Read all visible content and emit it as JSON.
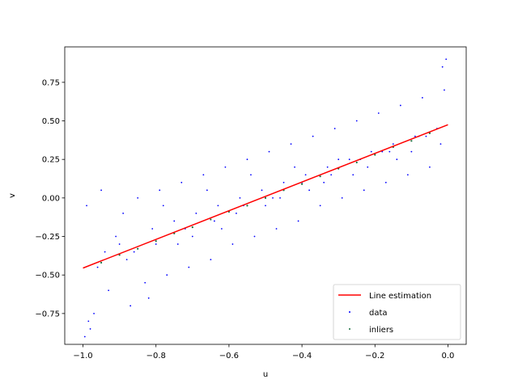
{
  "chart_data": {
    "type": "scatter",
    "title": "",
    "xlabel": "u",
    "ylabel": "v",
    "xlim": [
      -1.05,
      0.05
    ],
    "ylim": [
      -0.95,
      0.98
    ],
    "xticks": [
      -1.0,
      -0.8,
      -0.6,
      -0.4,
      -0.2,
      0.0
    ],
    "xtick_labels": [
      "−1.0",
      "−0.8",
      "−0.6",
      "−0.4",
      "−0.2",
      "0.0"
    ],
    "yticks": [
      -0.75,
      -0.5,
      -0.25,
      0.0,
      0.25,
      0.5,
      0.75
    ],
    "ytick_labels": [
      "−0.75",
      "−0.50",
      "−0.25",
      "0.00",
      "0.25",
      "0.50",
      "0.75"
    ],
    "grid": false,
    "legend_position": "lower-right",
    "line": {
      "name": "Line estimation",
      "color": "#ff0000",
      "x": [
        -1.0,
        0.0
      ],
      "y": [
        -0.455,
        0.475
      ]
    },
    "series": [
      {
        "name": "data",
        "color": "#0000ff",
        "kind": "scatter",
        "x": [
          -0.99,
          -0.97,
          -0.95,
          -0.93,
          -0.91,
          -0.89,
          -0.87,
          -0.85,
          -0.83,
          -0.81,
          -0.79,
          -0.77,
          -0.75,
          -0.73,
          -0.71,
          -0.69,
          -0.67,
          -0.65,
          -0.63,
          -0.61,
          -0.59,
          -0.57,
          -0.55,
          -0.53,
          -0.51,
          -0.49,
          -0.47,
          -0.45,
          -0.43,
          -0.41,
          -0.39,
          -0.37,
          -0.35,
          -0.33,
          -0.31,
          -0.29,
          -0.27,
          -0.25,
          -0.23,
          -0.21,
          -0.19,
          -0.17,
          -0.15,
          -0.13,
          -0.11,
          -0.09,
          -0.07,
          -0.05,
          -0.03,
          -0.01,
          -0.98,
          -0.94,
          -0.9,
          -0.86,
          -0.82,
          -0.78,
          -0.74,
          -0.7,
          -0.66,
          -0.62,
          -0.58,
          -0.54,
          -0.5,
          -0.46,
          -0.42,
          -0.38,
          -0.34,
          -0.3,
          -0.26,
          -0.22,
          -0.18,
          -0.14,
          -0.1,
          -0.06,
          -0.02,
          -0.96,
          -0.88,
          -0.8,
          -0.72,
          -0.64,
          -0.56,
          -0.48,
          -0.4,
          -0.32,
          -0.24,
          -0.16,
          -0.08,
          -0.995,
          -0.985,
          -0.005,
          -0.015
        ],
        "y": [
          -0.05,
          -0.75,
          0.05,
          -0.6,
          -0.25,
          -0.1,
          -0.7,
          0.0,
          -0.55,
          -0.2,
          0.05,
          -0.5,
          -0.15,
          0.1,
          -0.45,
          -0.1,
          0.15,
          -0.4,
          -0.05,
          0.2,
          -0.3,
          0.0,
          0.25,
          -0.25,
          0.05,
          0.3,
          -0.2,
          0.1,
          0.35,
          -0.15,
          0.15,
          0.4,
          -0.05,
          0.2,
          0.45,
          0.0,
          0.25,
          0.5,
          0.05,
          0.3,
          0.55,
          0.1,
          0.35,
          0.6,
          0.15,
          0.4,
          0.65,
          0.2,
          0.45,
          0.7,
          -0.85,
          -0.35,
          -0.3,
          -0.35,
          -0.65,
          -0.05,
          -0.3,
          -0.25,
          0.05,
          -0.2,
          -0.1,
          0.15,
          -0.05,
          0.0,
          0.2,
          0.05,
          0.1,
          0.25,
          0.15,
          0.2,
          0.3,
          0.25,
          0.3,
          0.4,
          0.35,
          -0.45,
          -0.4,
          -0.3,
          -0.2,
          -0.15,
          -0.05,
          0.0,
          0.1,
          0.15,
          0.25,
          0.3,
          0.4,
          -0.9,
          -0.8,
          0.9,
          0.85
        ]
      },
      {
        "name": "inliers",
        "color": "#1a6f3f",
        "kind": "scatter",
        "x": [
          -0.95,
          -0.9,
          -0.85,
          -0.8,
          -0.75,
          -0.7,
          -0.65,
          -0.6,
          -0.55,
          -0.5,
          -0.45,
          -0.4,
          -0.35,
          -0.3,
          -0.25,
          -0.2,
          -0.15,
          -0.1,
          -0.05
        ],
        "y": [
          -0.42,
          -0.37,
          -0.33,
          -0.28,
          -0.23,
          -0.19,
          -0.14,
          -0.09,
          -0.05,
          0.0,
          0.05,
          0.09,
          0.14,
          0.19,
          0.23,
          0.28,
          0.33,
          0.37,
          0.42
        ]
      }
    ]
  }
}
